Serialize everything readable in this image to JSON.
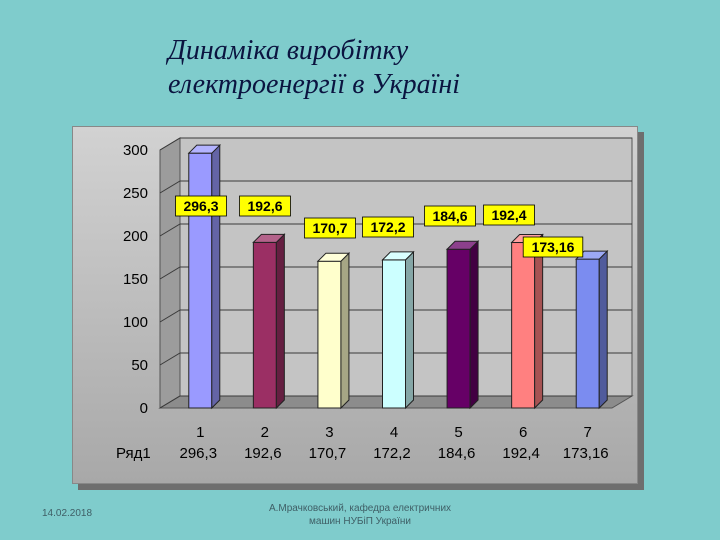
{
  "title_lines": [
    "Динаміка виробітку",
    "електроенергії  в Україні"
  ],
  "footer": {
    "date": "14.02.2018",
    "credit_lines": [
      "А.Мрачковський, кафедра електричних",
      "машин НУБіП України"
    ]
  },
  "colors": {
    "background": "#7fcccc",
    "label_fill": "#ffff00",
    "bars": [
      "#9a9aff",
      "#9b2f64",
      "#ffffcc",
      "#ccffff",
      "#660066",
      "#ff8080",
      "#7b8cf0"
    ]
  },
  "chart_data": {
    "type": "bar",
    "categories": [
      "1",
      "2",
      "3",
      "4",
      "5",
      "6",
      "7"
    ],
    "series": [
      {
        "name": "Ряд1",
        "values": [
          296.3,
          192.6,
          170.7,
          172.2,
          184.6,
          192.4,
          173.16
        ]
      }
    ],
    "value_labels": [
      "296,3",
      "192,6",
      "170,7",
      "172,2",
      "184,6",
      "192,4",
      "173,16"
    ],
    "table_row_label": "Ряд1",
    "table_values": [
      "296,3",
      "192,6",
      "170,7",
      "172,2",
      "184,6",
      "192,4",
      "173,16"
    ],
    "y_ticks": [
      "0",
      "50",
      "100",
      "150",
      "200",
      "250",
      "300"
    ],
    "ylim": [
      0,
      300
    ],
    "grid": true,
    "legend": "data-table-below"
  }
}
